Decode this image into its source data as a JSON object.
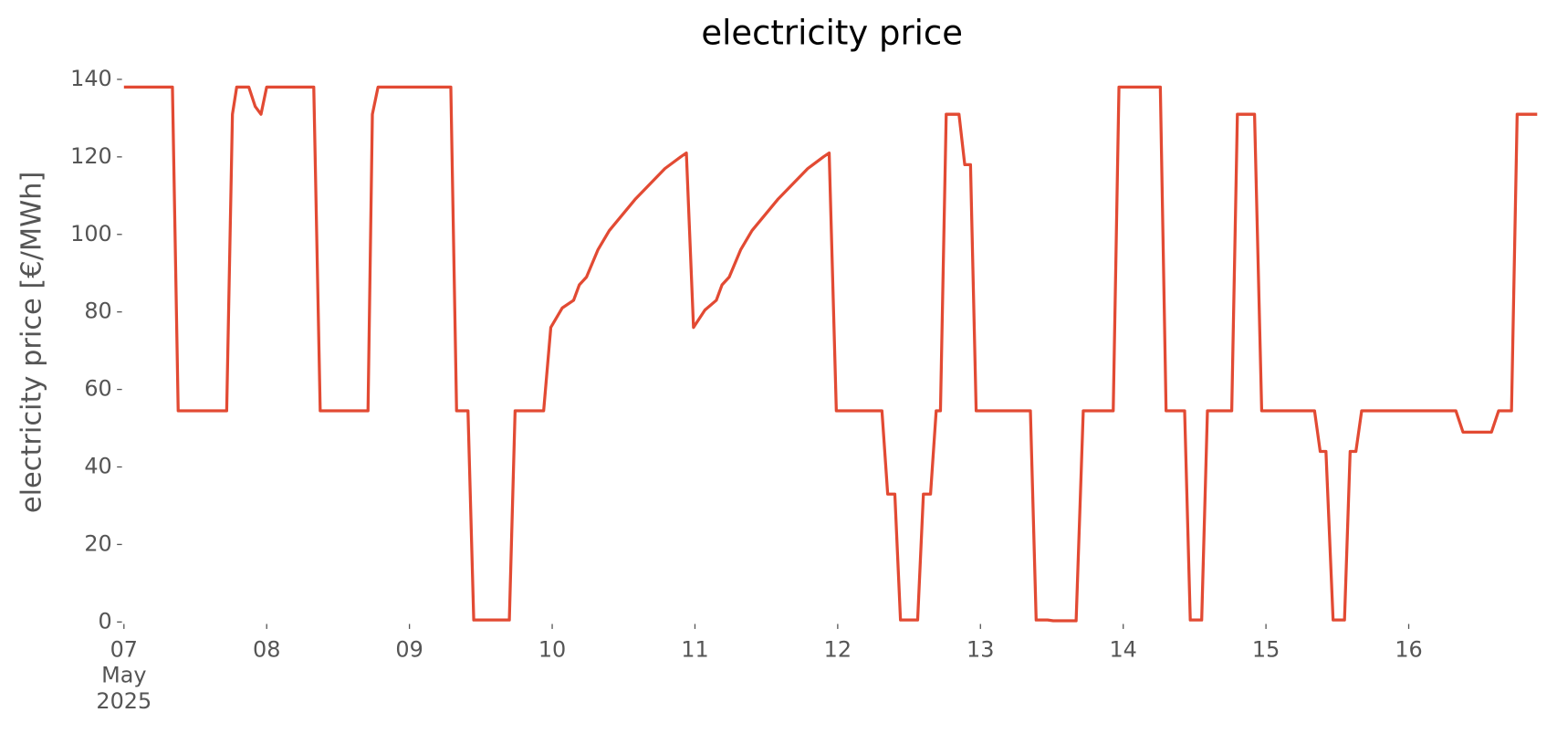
{
  "chart_data": {
    "type": "line",
    "title": "electricity price",
    "ylabel": "electricity price [€/MWh]",
    "color": "#e24a33",
    "x": [
      0,
      0.34,
      0.38,
      0.72,
      0.76,
      0.79,
      0.875,
      0.92,
      0.96,
      1.0,
      1.33,
      1.375,
      1.71,
      1.74,
      1.78,
      2.29,
      2.33,
      2.41,
      2.45,
      2.7,
      2.74,
      2.94,
      2.99,
      3.07,
      3.15,
      3.19,
      3.24,
      3.32,
      3.4,
      3.58,
      3.79,
      3.9,
      3.94,
      3.99,
      4.07,
      4.15,
      4.19,
      4.24,
      4.32,
      4.4,
      4.58,
      4.79,
      4.9,
      4.94,
      4.99,
      5.31,
      5.35,
      5.4,
      5.44,
      5.56,
      5.6,
      5.65,
      5.69,
      5.72,
      5.76,
      5.85,
      5.89,
      5.93,
      5.97,
      6.35,
      6.39,
      6.47,
      6.51,
      6.67,
      6.72,
      6.93,
      6.97,
      7.26,
      7.3,
      7.43,
      7.47,
      7.55,
      7.59,
      7.76,
      7.8,
      7.92,
      7.97,
      8.34,
      8.38,
      8.42,
      8.47,
      8.55,
      8.59,
      8.63,
      8.67,
      9.33,
      9.38,
      9.58,
      9.63,
      9.72,
      9.76,
      9.9
    ],
    "values": [
      138,
      138,
      54.5,
      54.5,
      131,
      138,
      138,
      133,
      131,
      138,
      138,
      54.5,
      54.5,
      131,
      138,
      138,
      54.5,
      54.5,
      0.5,
      0.5,
      54.5,
      54.5,
      76,
      81,
      83,
      87,
      89,
      96,
      101,
      109,
      117,
      120,
      121,
      76,
      80.5,
      83,
      87,
      89,
      96,
      101,
      109,
      117,
      120,
      121,
      54.5,
      54.5,
      33,
      33,
      0.5,
      0.5,
      33,
      33,
      54.5,
      54.5,
      131,
      131,
      118,
      118,
      54.5,
      54.5,
      0.5,
      0.5,
      0.3,
      0.3,
      54.5,
      54.5,
      138,
      138,
      54.5,
      54.5,
      0.5,
      0.5,
      54.5,
      54.5,
      131,
      131,
      54.5,
      54.5,
      44,
      44,
      0.5,
      0.5,
      44,
      44,
      54.5,
      54.5,
      49,
      49,
      54.5,
      54.5,
      131,
      131
    ],
    "xlim": [
      0,
      9.9
    ],
    "xticks": [
      {
        "value": 0,
        "label": "07 May 2025"
      },
      {
        "value": 1,
        "label": "08"
      },
      {
        "value": 2,
        "label": "09"
      },
      {
        "value": 3,
        "label": "10"
      },
      {
        "value": 4,
        "label": "11"
      },
      {
        "value": 5,
        "label": "12"
      },
      {
        "value": 6,
        "label": "13"
      },
      {
        "value": 7,
        "label": "14"
      },
      {
        "value": 8,
        "label": "15"
      },
      {
        "value": 9,
        "label": "16"
      }
    ],
    "ylim": [
      0,
      140
    ],
    "yticks": [
      0,
      20,
      40,
      60,
      80,
      100,
      120,
      140
    ]
  }
}
